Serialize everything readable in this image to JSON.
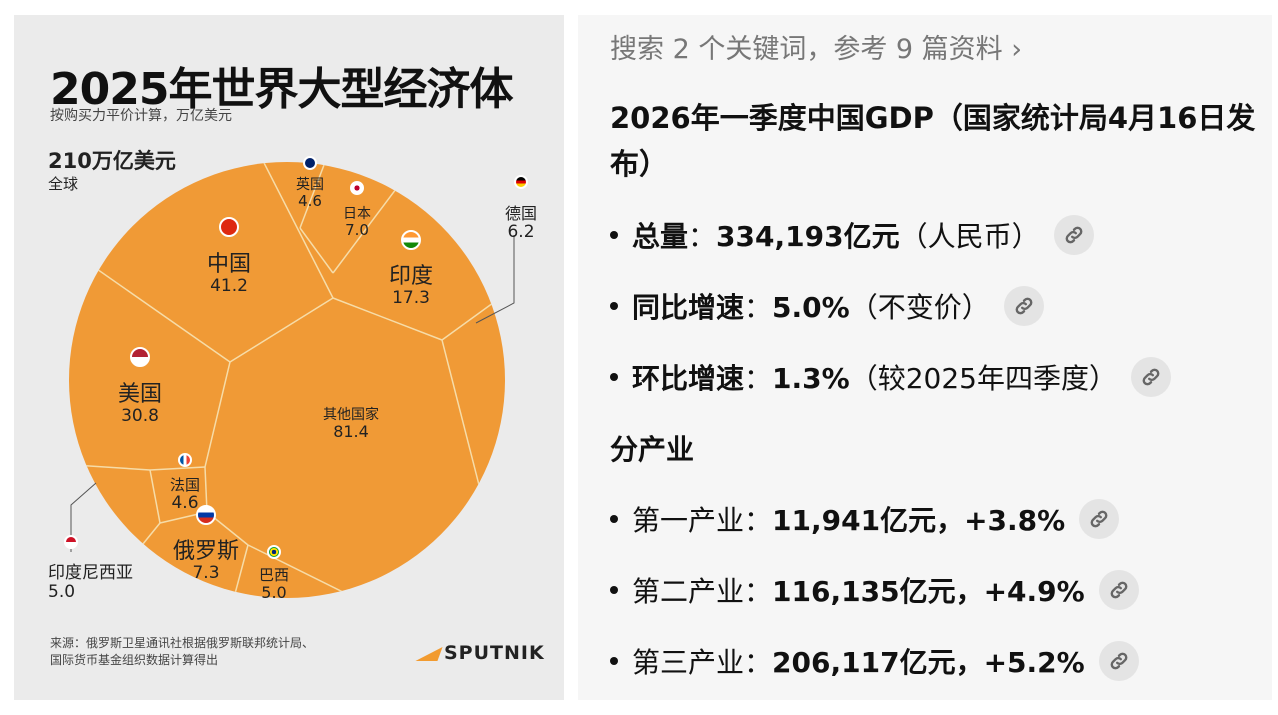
{
  "infographic": {
    "title": "2025年世界大型经济体",
    "subtitle": "按购买力平价计算，万亿美元",
    "total_value": "210万亿美元",
    "total_label": "全球",
    "source_line1": "来源：俄罗斯卫星通讯社根据俄罗斯联邦统计局、",
    "source_line2": "国际货币基金组织数据计算得出",
    "logo_text": "SPUTNIK",
    "colors": {
      "cell": "#f09a36",
      "border": "#f6dca8",
      "background": "#ebebeb"
    },
    "economies": [
      {
        "name": "中国",
        "value": "41.2",
        "icon": "flag-china-icon"
      },
      {
        "name": "美国",
        "value": "30.8",
        "icon": "flag-usa-icon"
      },
      {
        "name": "印度",
        "value": "17.3",
        "icon": "flag-india-icon"
      },
      {
        "name": "其他国家",
        "value": "81.4",
        "icon": ""
      },
      {
        "name": "日本",
        "value": "7.0",
        "icon": "flag-japan-icon"
      },
      {
        "name": "英国",
        "value": "4.6",
        "icon": "flag-uk-icon"
      },
      {
        "name": "德国",
        "value": "6.2",
        "icon": "flag-germany-icon"
      },
      {
        "name": "法国",
        "value": "4.6",
        "icon": "flag-france-icon"
      },
      {
        "name": "俄罗斯",
        "value": "7.3",
        "icon": "flag-russia-icon"
      },
      {
        "name": "巴西",
        "value": "5.0",
        "icon": "flag-brazil-icon"
      },
      {
        "name": "印度尼西亚",
        "value": "5.0",
        "icon": "flag-indonesia-icon"
      }
    ]
  },
  "chart_data": {
    "type": "voronoi-treemap",
    "title": "2025年世界大型经济体",
    "subtitle": "按购买力平价计算，万亿美元",
    "categories": [
      "中国",
      "美国",
      "印度",
      "其他国家",
      "日本",
      "英国",
      "德国",
      "法国",
      "俄罗斯",
      "巴西",
      "印度尼西亚"
    ],
    "values": [
      41.2,
      30.8,
      17.3,
      81.4,
      7.0,
      4.6,
      6.2,
      4.6,
      7.3,
      5.0,
      5.0
    ]
  },
  "answer": {
    "search_summary": "搜索 2 个关键词，参考 9 篇资料",
    "heading": "2026年一季度中国GDP（国家统计局4月16日发布）",
    "items": [
      {
        "label": "总量",
        "value": "334,193亿元",
        "note": "（人民币）"
      },
      {
        "label": "同比增速",
        "value": "5.0%",
        "note": "（不变价）"
      },
      {
        "label": "环比增速",
        "value": "1.3%",
        "note": "（较2025年四季度）"
      }
    ],
    "section": "分产业",
    "industries": [
      {
        "label": "第一产业",
        "value": "11,941亿元，+3.8%"
      },
      {
        "label": "第二产业",
        "value": "116,135亿元，+4.9%"
      },
      {
        "label": "第三产业",
        "value": "206,117亿元，+5.2%"
      }
    ]
  }
}
